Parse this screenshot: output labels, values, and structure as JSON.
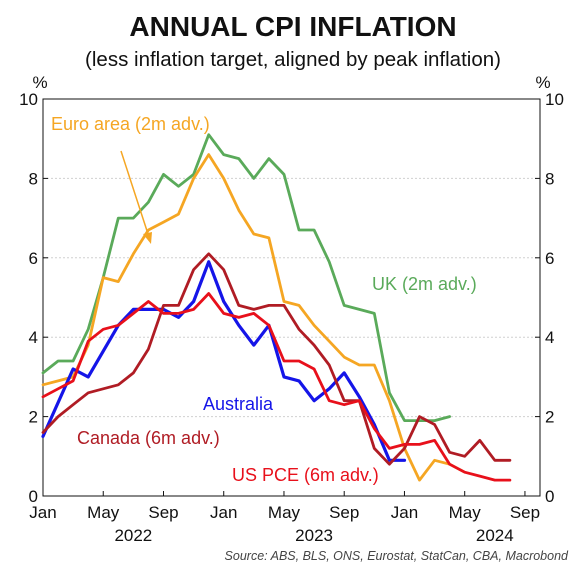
{
  "chart_data": {
    "type": "line",
    "title": "ANNUAL CPI INFLATION",
    "subtitle": "(less inflation target, aligned by peak inflation)",
    "y_unit_left": "%",
    "y_unit_right": "%",
    "ylim": [
      0,
      10
    ],
    "y_ticks": [
      0,
      2,
      4,
      6,
      8,
      10
    ],
    "xlim": [
      "2022-01",
      "2024-10"
    ],
    "x_tick_labels": [
      {
        "x": "2022-01",
        "label": "Jan"
      },
      {
        "x": "2022-05",
        "label": "May"
      },
      {
        "x": "2022-09",
        "label": "Sep"
      },
      {
        "x": "2023-01",
        "label": "Jan"
      },
      {
        "x": "2023-05",
        "label": "May"
      },
      {
        "x": "2023-09",
        "label": "Sep"
      },
      {
        "x": "2024-01",
        "label": "Jan"
      },
      {
        "x": "2024-05",
        "label": "May"
      },
      {
        "x": "2024-09",
        "label": "Sep"
      }
    ],
    "x_year_labels": [
      {
        "x": "2022-07",
        "label": "2022"
      },
      {
        "x": "2023-07",
        "label": "2023"
      },
      {
        "x": "2024-07",
        "label": "2024"
      }
    ],
    "grid": true,
    "source": "Source: ABS, BLS, ONS, Eurostat, StatCan, CBA, Macrobond",
    "series": [
      {
        "name": "UK (2m adv.)",
        "color": "#5aaa5a",
        "x": [
          "2022-01",
          "2022-02",
          "2022-03",
          "2022-04",
          "2022-05",
          "2022-06",
          "2022-07",
          "2022-08",
          "2022-09",
          "2022-10",
          "2022-11",
          "2022-12",
          "2023-01",
          "2023-02",
          "2023-03",
          "2023-04",
          "2023-05",
          "2023-06",
          "2023-07",
          "2023-08",
          "2023-09",
          "2023-10",
          "2023-11",
          "2023-12",
          "2024-01",
          "2024-02",
          "2024-03",
          "2024-04"
        ],
        "values": [
          3.1,
          3.4,
          3.4,
          4.2,
          5.5,
          7.0,
          7.0,
          7.4,
          8.1,
          7.8,
          8.1,
          9.1,
          8.6,
          8.5,
          8.0,
          8.5,
          8.1,
          6.7,
          6.7,
          5.9,
          4.8,
          4.7,
          4.6,
          2.6,
          1.9,
          1.9,
          1.9,
          2.0
        ]
      },
      {
        "name": "Euro area (2m adv.)",
        "color": "#f5a623",
        "x": [
          "2022-01",
          "2022-02",
          "2022-03",
          "2022-04",
          "2022-05",
          "2022-06",
          "2022-07",
          "2022-08",
          "2022-09",
          "2022-10",
          "2022-11",
          "2022-12",
          "2023-01",
          "2023-02",
          "2023-03",
          "2023-04",
          "2023-05",
          "2023-06",
          "2023-07",
          "2023-08",
          "2023-09",
          "2023-10",
          "2023-11",
          "2023-12",
          "2024-01",
          "2024-02",
          "2024-03",
          "2024-04",
          "2024-05"
        ],
        "values": [
          2.8,
          2.9,
          3.0,
          3.8,
          5.5,
          5.4,
          6.1,
          6.7,
          6.9,
          7.1,
          8.0,
          8.6,
          8.0,
          7.2,
          6.6,
          6.5,
          4.9,
          4.8,
          4.3,
          3.9,
          3.5,
          3.3,
          3.3,
          2.4,
          1.2,
          0.4,
          0.9,
          0.8,
          0.6
        ]
      },
      {
        "name": "Australia",
        "color": "#1515e8",
        "x": [
          "2022-01",
          "2022-03",
          "2022-04",
          "2022-06",
          "2022-07",
          "2022-09",
          "2022-10",
          "2022-11",
          "2022-12",
          "2023-01",
          "2023-02",
          "2023-03",
          "2023-04",
          "2023-05",
          "2023-06",
          "2023-07",
          "2023-08",
          "2023-09",
          "2023-10",
          "2023-11",
          "2023-12",
          "2024-01"
        ],
        "values": [
          1.5,
          3.2,
          3.0,
          4.3,
          4.7,
          4.7,
          4.5,
          4.9,
          5.9,
          4.9,
          4.3,
          3.8,
          4.3,
          3.0,
          2.9,
          2.4,
          2.7,
          3.1,
          2.5,
          1.8,
          0.9,
          0.9
        ]
      },
      {
        "name": "Canada (6m adv.)",
        "color": "#b01c24",
        "x": [
          "2022-01",
          "2022-02",
          "2022-03",
          "2022-04",
          "2022-05",
          "2022-06",
          "2022-07",
          "2022-08",
          "2022-09",
          "2022-10",
          "2022-11",
          "2022-12",
          "2023-01",
          "2023-02",
          "2023-03",
          "2023-04",
          "2023-05",
          "2023-06",
          "2023-07",
          "2023-08",
          "2023-09",
          "2023-10",
          "2023-11",
          "2023-12",
          "2024-01",
          "2024-02",
          "2024-03",
          "2024-04",
          "2024-05",
          "2024-06",
          "2024-07",
          "2024-08"
        ],
        "values": [
          1.6,
          2.0,
          2.3,
          2.6,
          2.7,
          2.8,
          3.1,
          3.7,
          4.8,
          4.8,
          5.7,
          6.1,
          5.7,
          4.8,
          4.7,
          4.8,
          4.8,
          4.2,
          3.8,
          3.3,
          2.4,
          2.4,
          1.2,
          0.8,
          1.2,
          2.0,
          1.8,
          1.1,
          1.0,
          1.4,
          0.9,
          0.9
        ]
      },
      {
        "name": "US PCE (6m adv.)",
        "color": "#e8101b",
        "x": [
          "2022-01",
          "2022-02",
          "2022-03",
          "2022-04",
          "2022-05",
          "2022-06",
          "2022-07",
          "2022-08",
          "2022-09",
          "2022-10",
          "2022-11",
          "2022-12",
          "2023-01",
          "2023-02",
          "2023-03",
          "2023-04",
          "2023-05",
          "2023-06",
          "2023-07",
          "2023-08",
          "2023-09",
          "2023-10",
          "2023-11",
          "2023-12",
          "2024-01",
          "2024-02",
          "2024-03",
          "2024-04",
          "2024-05",
          "2024-06",
          "2024-07",
          "2024-08"
        ],
        "values": [
          2.5,
          2.7,
          2.9,
          3.9,
          4.2,
          4.3,
          4.6,
          4.9,
          4.6,
          4.6,
          4.7,
          5.1,
          4.6,
          4.5,
          4.6,
          4.3,
          3.4,
          3.4,
          3.2,
          2.4,
          2.3,
          2.4,
          1.7,
          1.2,
          1.3,
          1.3,
          1.4,
          0.8,
          0.6,
          0.5,
          0.4,
          0.4
        ]
      }
    ],
    "annotations": [
      {
        "text": "Euro area (2m adv.)",
        "series": "Euro area (2m adv.)",
        "arrow_to": {
          "x": "2022-08",
          "y": 6.7
        }
      },
      {
        "text": "UK (2m adv.)",
        "series": "UK (2m adv.)"
      },
      {
        "text": "Australia",
        "series": "Australia"
      },
      {
        "text": "Canada (6m adv.)",
        "series": "Canada (6m adv.)"
      },
      {
        "text": "US PCE (6m adv.)",
        "series": "US PCE (6m adv.)"
      }
    ]
  }
}
